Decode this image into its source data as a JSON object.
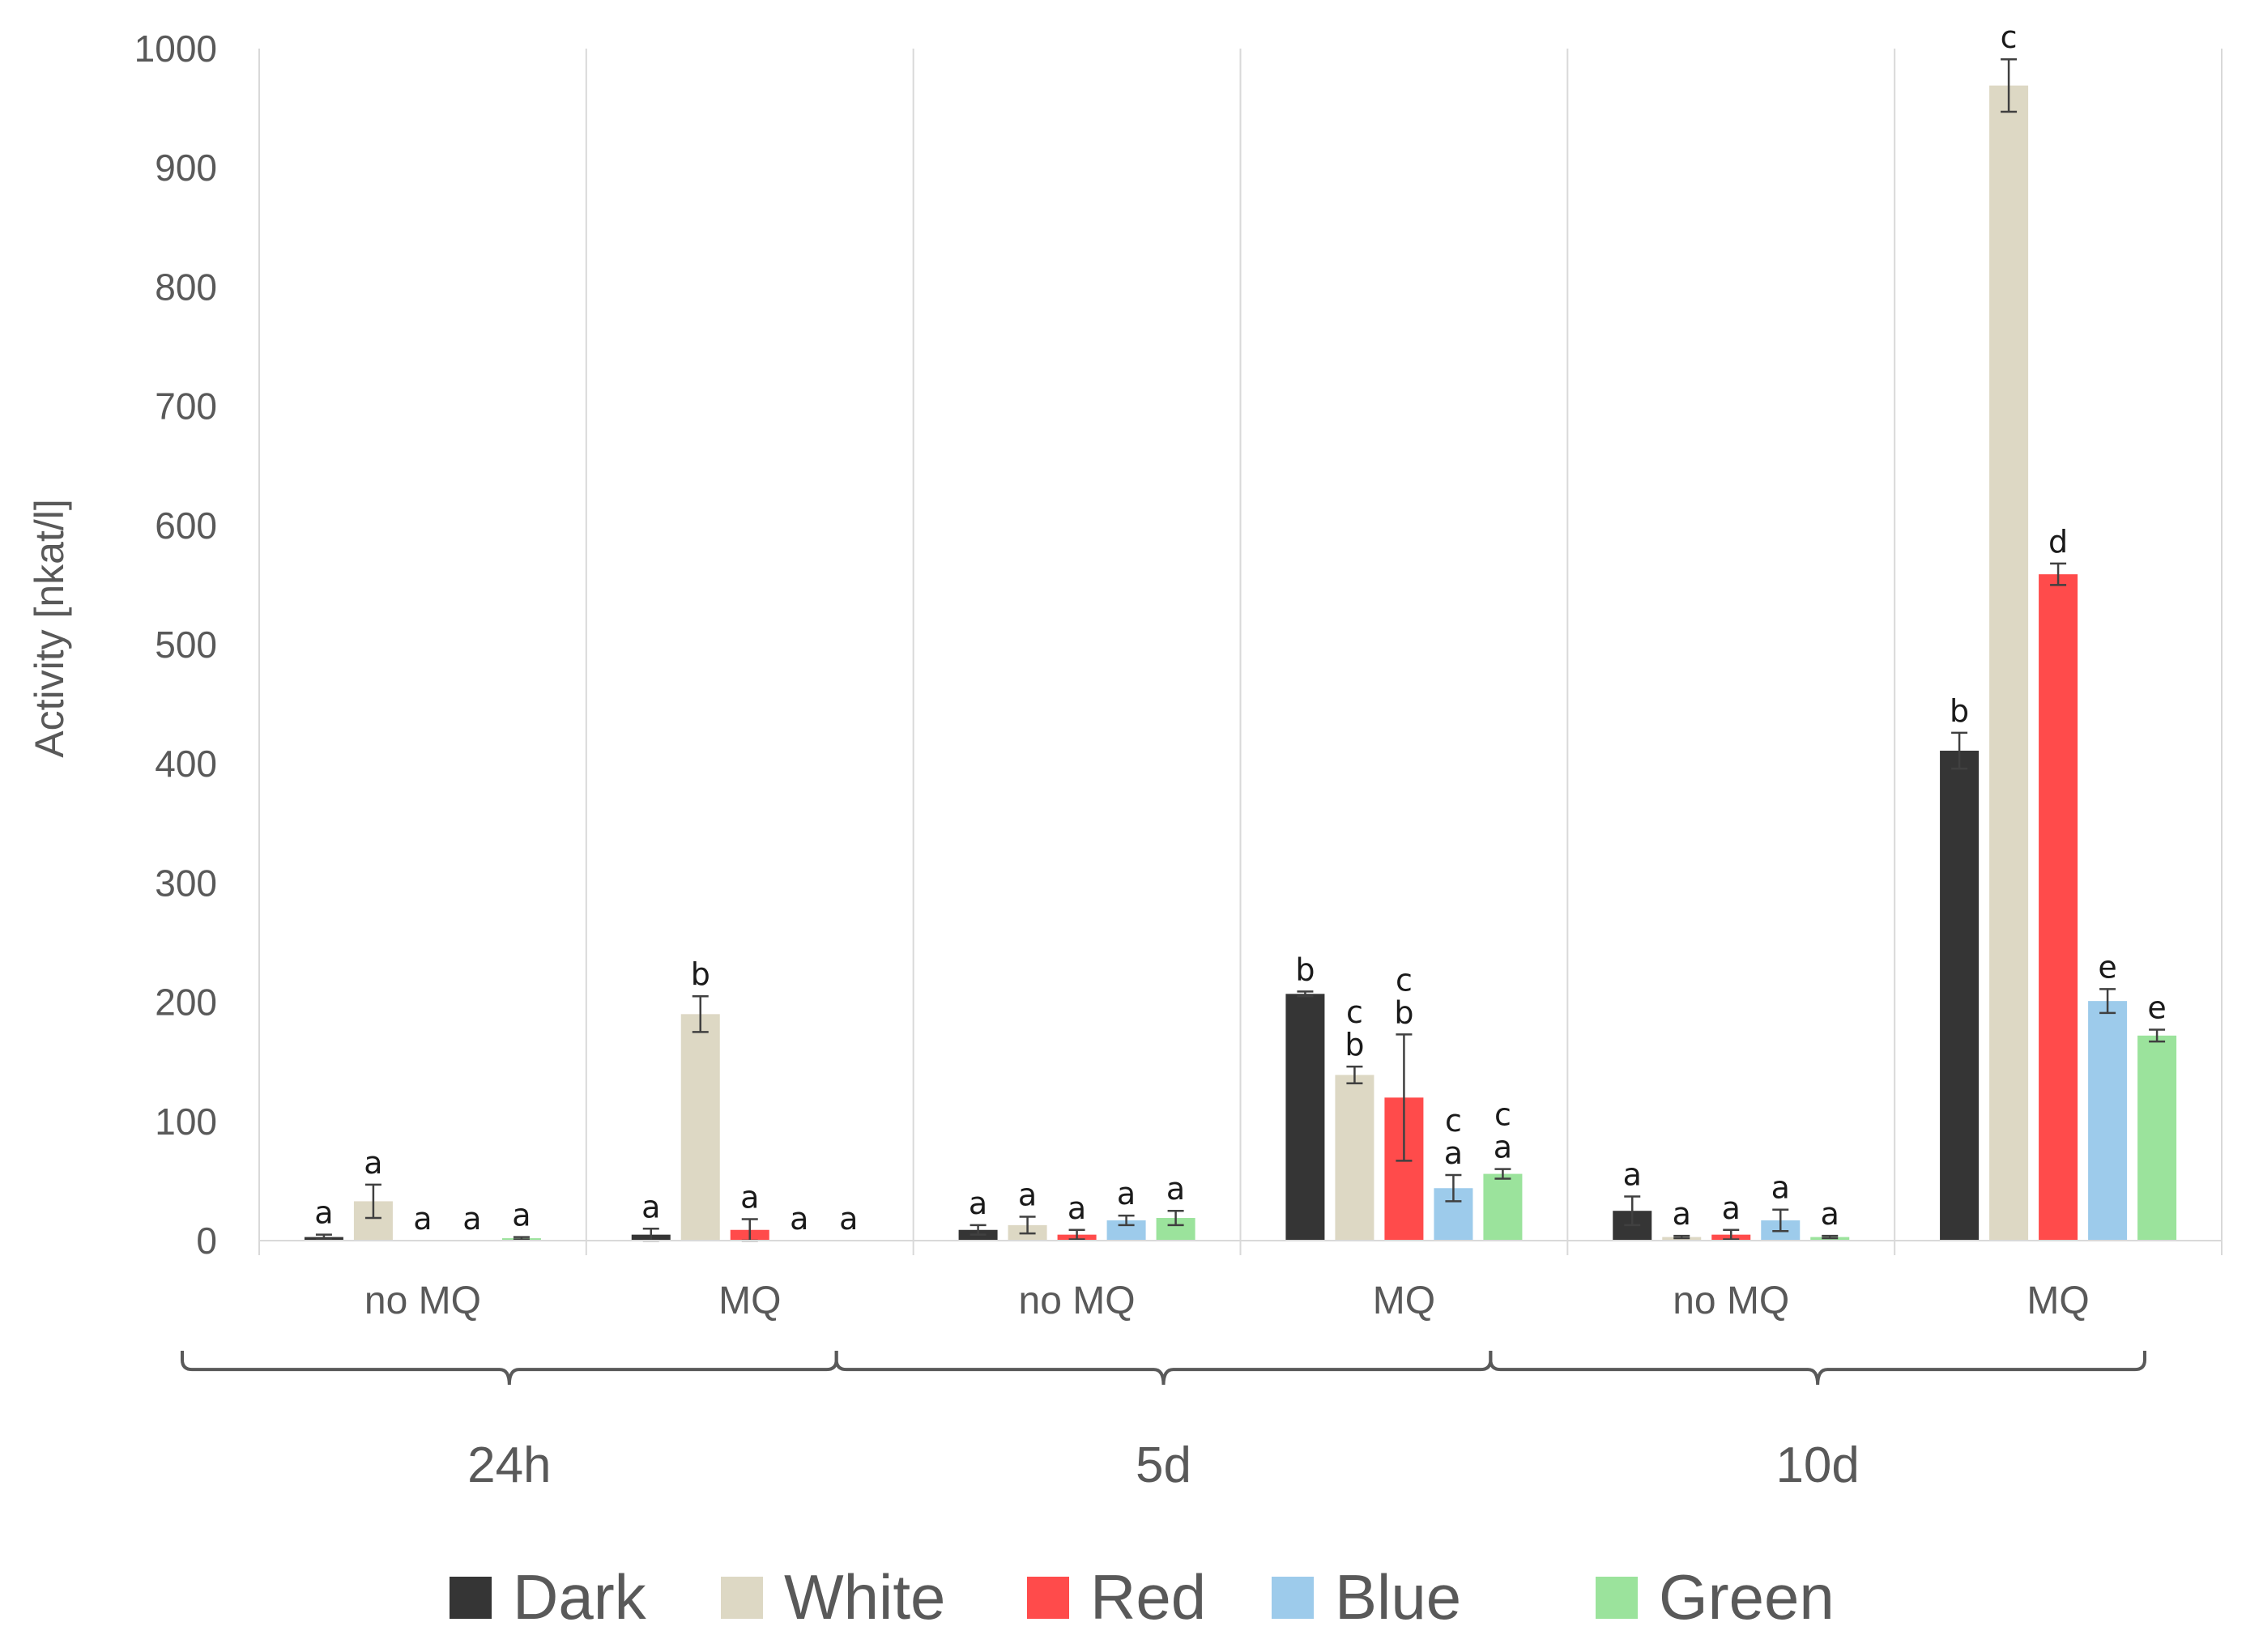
{
  "chart_data": {
    "type": "bar",
    "title": "",
    "xlabel": "",
    "ylabel": "Activity [nkat/l]",
    "ylim": [
      0,
      1000
    ],
    "yticks": [
      0,
      100,
      200,
      300,
      400,
      500,
      600,
      700,
      800,
      900,
      1000
    ],
    "grid": "vertical separators between categories",
    "legend_position": "bottom",
    "groups": [
      {
        "label": "24h",
        "categories": [
          "no MQ",
          "MQ"
        ]
      },
      {
        "label": "5d",
        "categories": [
          "no MQ",
          "MQ"
        ]
      },
      {
        "label": "10d",
        "categories": [
          "no MQ",
          "MQ"
        ]
      }
    ],
    "categories": [
      "no MQ",
      "MQ",
      "no MQ",
      "MQ",
      "no MQ",
      "MQ"
    ],
    "series": [
      {
        "name": "Dark",
        "color": "#353535",
        "values": [
          3,
          5,
          9,
          207,
          25,
          411
        ],
        "errors": [
          2,
          5,
          4,
          2,
          12,
          15
        ],
        "letters": [
          [
            "a"
          ],
          [
            "a"
          ],
          [
            "a"
          ],
          [
            "b"
          ],
          [
            "a"
          ],
          [
            "b"
          ]
        ]
      },
      {
        "name": "White",
        "color": "#ddd8c4",
        "values": [
          33,
          190,
          13,
          139,
          3,
          969
        ],
        "errors": [
          14,
          15,
          7,
          7,
          1,
          22
        ],
        "letters": [
          [
            "a"
          ],
          [
            "b"
          ],
          [
            "a"
          ],
          [
            "c",
            "b"
          ],
          [
            "a"
          ],
          [
            "c"
          ]
        ]
      },
      {
        "name": "Red",
        "color": "#ff4b4b",
        "values": [
          0,
          9,
          5,
          120,
          5,
          559
        ],
        "errors": [
          0,
          9,
          4,
          53,
          4,
          9
        ],
        "letters": [
          [
            "a"
          ],
          [
            "a"
          ],
          [
            "a"
          ],
          [
            "c",
            "b"
          ],
          [
            "a"
          ],
          [
            "d"
          ]
        ]
      },
      {
        "name": "Blue",
        "color": "#9dcbeb",
        "values": [
          0,
          0,
          17,
          44,
          17,
          201
        ],
        "errors": [
          0,
          0,
          4,
          11,
          9,
          10
        ],
        "letters": [
          [
            "a"
          ],
          [
            "a"
          ],
          [
            "a"
          ],
          [
            "c",
            "a"
          ],
          [
            "a"
          ],
          [
            "e"
          ]
        ]
      },
      {
        "name": "Green",
        "color": "#9be39c",
        "values": [
          2,
          0,
          19,
          56,
          3,
          172
        ],
        "errors": [
          1,
          0,
          6,
          4,
          1,
          5
        ],
        "letters": [
          [
            "a"
          ],
          [
            "a"
          ],
          [
            "a"
          ],
          [
            "c",
            "a"
          ],
          [
            "a"
          ],
          [
            "e"
          ]
        ]
      }
    ]
  }
}
